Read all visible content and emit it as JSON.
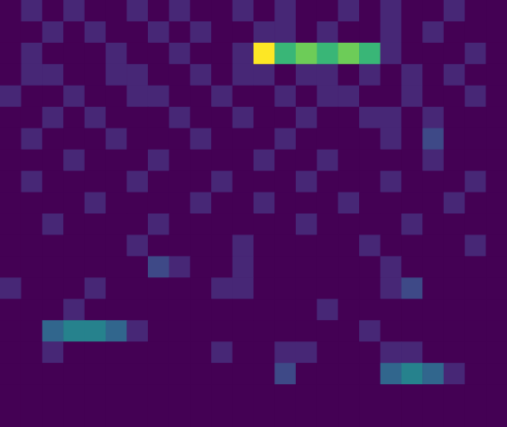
{
  "chart_data": {
    "type": "heatmap",
    "tick_labels": false,
    "zlim": [
      1,
      10
    ],
    "cells": [
      [
        1,
        2,
        1,
        2,
        1,
        1,
        2,
        1,
        2,
        1,
        1,
        2,
        1,
        2,
        1,
        1,
        2,
        1,
        2,
        1,
        1,
        2,
        1,
        1
      ],
      [
        1,
        1,
        2,
        1,
        2,
        1,
        1,
        2,
        1,
        2,
        1,
        1,
        2,
        2,
        1,
        2,
        1,
        1,
        2,
        1,
        2,
        1,
        1,
        1
      ],
      [
        1,
        2,
        1,
        1,
        1,
        2,
        1,
        1,
        2,
        1,
        1,
        2,
        10,
        7,
        8,
        7,
        8,
        7,
        2,
        1,
        1,
        1,
        2,
        1
      ],
      [
        1,
        2,
        2,
        1,
        1,
        2,
        2,
        1,
        1,
        2,
        1,
        2,
        2,
        1,
        2,
        2,
        1,
        2,
        1,
        2,
        1,
        2,
        1,
        1
      ],
      [
        2,
        1,
        1,
        2,
        1,
        1,
        2,
        2,
        1,
        1,
        2,
        1,
        1,
        2,
        1,
        2,
        2,
        1,
        1,
        2,
        1,
        1,
        2,
        1
      ],
      [
        1,
        1,
        2,
        1,
        2,
        1,
        1,
        1,
        2,
        1,
        1,
        2,
        1,
        1,
        2,
        1,
        1,
        2,
        2,
        1,
        2,
        1,
        1,
        1
      ],
      [
        1,
        2,
        1,
        1,
        1,
        2,
        1,
        1,
        1,
        2,
        1,
        1,
        1,
        2,
        1,
        1,
        1,
        1,
        2,
        1,
        3,
        1,
        1,
        1
      ],
      [
        1,
        1,
        1,
        2,
        1,
        1,
        1,
        2,
        1,
        1,
        1,
        1,
        2,
        1,
        1,
        2,
        1,
        1,
        1,
        1,
        2,
        1,
        1,
        1
      ],
      [
        1,
        2,
        1,
        1,
        1,
        1,
        2,
        1,
        1,
        1,
        2,
        1,
        1,
        1,
        2,
        1,
        1,
        1,
        2,
        1,
        1,
        1,
        2,
        1
      ],
      [
        1,
        1,
        1,
        1,
        2,
        1,
        1,
        1,
        1,
        2,
        1,
        1,
        2,
        1,
        1,
        1,
        2,
        1,
        1,
        1,
        1,
        2,
        1,
        1
      ],
      [
        1,
        1,
        2,
        1,
        1,
        1,
        1,
        2,
        1,
        1,
        1,
        1,
        1,
        1,
        2,
        1,
        1,
        1,
        1,
        2,
        1,
        1,
        1,
        1
      ],
      [
        1,
        1,
        1,
        1,
        1,
        1,
        2,
        1,
        1,
        1,
        1,
        2,
        1,
        1,
        1,
        1,
        1,
        2,
        1,
        1,
        1,
        1,
        2,
        1
      ],
      [
        1,
        1,
        1,
        1,
        1,
        1,
        1,
        3,
        2,
        1,
        1,
        2,
        1,
        1,
        1,
        1,
        1,
        1,
        2,
        1,
        1,
        1,
        1,
        1
      ],
      [
        2,
        1,
        1,
        1,
        2,
        1,
        1,
        1,
        1,
        1,
        2,
        2,
        1,
        1,
        1,
        1,
        1,
        1,
        2,
        3,
        1,
        1,
        1,
        1
      ],
      [
        1,
        1,
        1,
        2,
        1,
        1,
        1,
        1,
        1,
        1,
        1,
        1,
        1,
        1,
        1,
        2,
        1,
        1,
        1,
        1,
        1,
        1,
        1,
        1
      ],
      [
        1,
        1,
        4,
        5,
        5,
        4,
        2,
        1,
        1,
        1,
        1,
        1,
        1,
        1,
        1,
        1,
        1,
        2,
        1,
        1,
        1,
        1,
        1,
        1
      ],
      [
        1,
        1,
        2,
        1,
        1,
        1,
        1,
        1,
        1,
        1,
        2,
        1,
        1,
        2,
        2,
        1,
        1,
        1,
        2,
        2,
        1,
        1,
        1,
        1
      ],
      [
        1,
        1,
        1,
        1,
        1,
        1,
        1,
        1,
        1,
        1,
        1,
        1,
        1,
        3,
        1,
        1,
        1,
        1,
        4,
        5,
        4,
        2,
        1,
        1
      ],
      [
        1,
        1,
        1,
        1,
        1,
        1,
        1,
        1,
        1,
        1,
        1,
        1,
        1,
        1,
        1,
        1,
        1,
        1,
        1,
        1,
        1,
        1,
        1,
        1
      ],
      [
        1,
        1,
        1,
        1,
        1,
        1,
        1,
        1,
        1,
        1,
        1,
        1,
        1,
        1,
        1,
        1,
        1,
        1,
        1,
        1,
        1,
        1,
        1,
        1
      ]
    ]
  }
}
